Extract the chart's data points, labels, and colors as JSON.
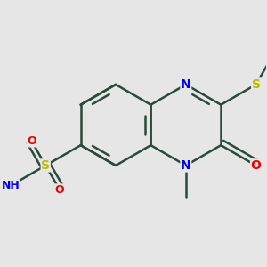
{
  "background_color": "#e6e6e6",
  "bond_color": "#2a4a3a",
  "bond_width": 1.8,
  "atom_colors": {
    "N": "#0000ee",
    "O": "#ee0000",
    "S": "#bbbb00",
    "C": "#2a4a3a",
    "H": "#2a4a3a"
  },
  "font_size": 10,
  "font_size_small": 8
}
